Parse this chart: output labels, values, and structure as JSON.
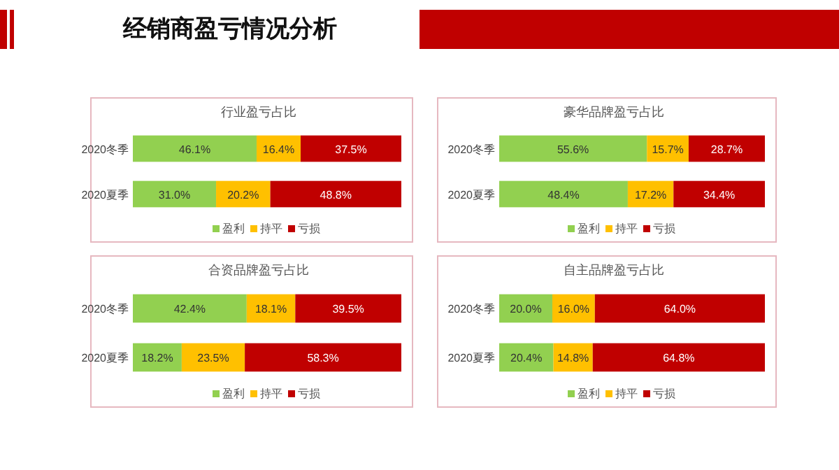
{
  "chart_data": [
    {
      "type": "bar",
      "orientation": "horizontal",
      "stacked": true,
      "title": "行业盈亏占比",
      "annotations": [
        "经销商盈亏情况分析"
      ],
      "categories": [
        "2020冬季",
        "2020夏季"
      ],
      "legend": "bottom",
      "series": [
        {
          "name": "盈利",
          "color": "#92d050",
          "values": [
            46.1,
            31.0
          ],
          "value_labels": [
            "46.1%",
            "31.0%"
          ]
        },
        {
          "name": "持平",
          "color": "#ffc000",
          "values": [
            16.4,
            20.2
          ],
          "value_labels": [
            "16.4%",
            "20.2%"
          ]
        },
        {
          "name": "亏损",
          "color": "#c00000",
          "values": [
            37.5,
            48.8
          ],
          "value_labels": [
            "37.5%",
            "48.8%"
          ]
        }
      ]
    },
    {
      "type": "bar",
      "orientation": "horizontal",
      "stacked": true,
      "title": "豪华品牌盈亏占比",
      "categories": [
        "2020冬季",
        "2020夏季"
      ],
      "legend": "bottom",
      "series": [
        {
          "name": "盈利",
          "color": "#92d050",
          "values": [
            55.6,
            48.4
          ],
          "value_labels": [
            "55.6%",
            "48.4%"
          ]
        },
        {
          "name": "持平",
          "color": "#ffc000",
          "values": [
            15.7,
            17.2
          ],
          "value_labels": [
            "15.7%",
            "17.2%"
          ]
        },
        {
          "name": "亏损",
          "color": "#c00000",
          "values": [
            28.7,
            34.4
          ],
          "value_labels": [
            "28.7%",
            "34.4%"
          ]
        }
      ]
    },
    {
      "type": "bar",
      "orientation": "horizontal",
      "stacked": true,
      "title": "合资品牌盈亏占比",
      "categories": [
        "2020冬季",
        "2020夏季"
      ],
      "legend": "bottom",
      "series": [
        {
          "name": "盈利",
          "color": "#92d050",
          "values": [
            42.4,
            18.2
          ],
          "value_labels": [
            "42.4%",
            "18.2%"
          ]
        },
        {
          "name": "持平",
          "color": "#ffc000",
          "values": [
            18.1,
            23.5
          ],
          "value_labels": [
            "18.1%",
            "23.5%"
          ]
        },
        {
          "name": "亏损",
          "color": "#c00000",
          "values": [
            39.5,
            58.3
          ],
          "value_labels": [
            "39.5%",
            "58.3%"
          ]
        }
      ]
    },
    {
      "type": "bar",
      "orientation": "horizontal",
      "stacked": true,
      "title": "自主品牌盈亏占比",
      "categories": [
        "2020冬季",
        "2020夏季"
      ],
      "legend": "bottom",
      "series": [
        {
          "name": "盈利",
          "color": "#92d050",
          "values": [
            20.0,
            20.4
          ],
          "value_labels": [
            "20.0%",
            "20.4%"
          ]
        },
        {
          "name": "持平",
          "color": "#ffc000",
          "values": [
            16.0,
            14.8
          ],
          "value_labels": [
            "16.0%",
            "14.8%"
          ]
        },
        {
          "name": "亏损",
          "color": "#c00000",
          "values": [
            64.0,
            64.8
          ],
          "value_labels": [
            "64.0%",
            "64.8%"
          ]
        }
      ]
    }
  ]
}
